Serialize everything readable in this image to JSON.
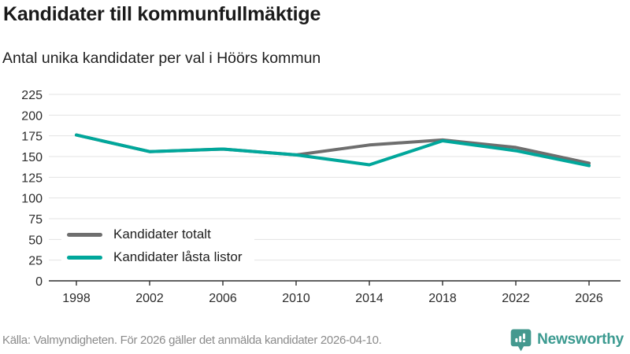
{
  "header": {
    "title": "Kandidater till kommunfullmäktige",
    "subtitle": "Antal unika kandidater per val i Höörs kommun"
  },
  "chart_data": {
    "type": "line",
    "x": [
      1998,
      2002,
      2006,
      2010,
      2014,
      2018,
      2022,
      2026
    ],
    "series": [
      {
        "name": "Kandidater totalt",
        "color": "#6e6e6e",
        "values": [
          176,
          156,
          159,
          152,
          164,
          170,
          161,
          142
        ]
      },
      {
        "name": "Kandidater låsta listor",
        "color": "#00a79b",
        "values": [
          176,
          156,
          159,
          152,
          140,
          169,
          157,
          139
        ]
      }
    ],
    "ylim": [
      0,
      225
    ],
    "ytick_step": 25,
    "yticks": [
      0,
      25,
      50,
      75,
      100,
      125,
      150,
      175,
      200,
      225
    ],
    "grid": true,
    "legend_position": "inside-bottom-left",
    "gridline_color": "#e3e3e3",
    "axis_color": "#2f2f2f"
  },
  "footer": {
    "source": "Källa: Valmyndigheten. För 2026 gäller det anmälda kandidater 2026-04-10.",
    "brand": "Newsworthy",
    "brand_color": "#3b9a90",
    "logo_icon": "bar-chart-pin-icon"
  }
}
